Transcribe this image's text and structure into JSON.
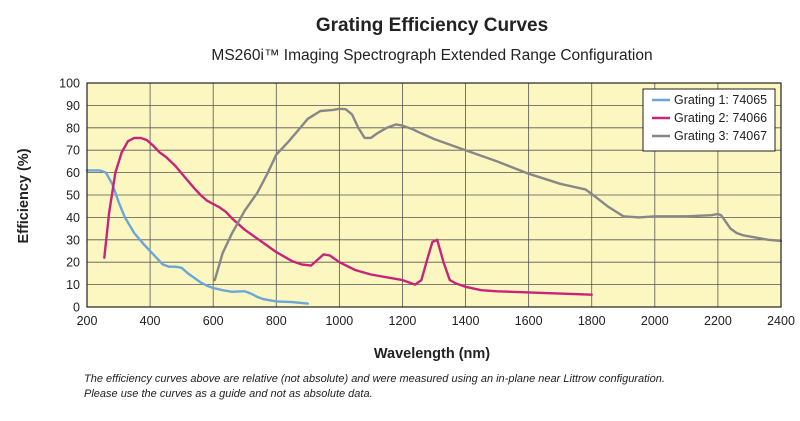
{
  "chart_data": {
    "type": "line",
    "title": "Grating Efficiency Curves",
    "subtitle": "MS260i™ Imaging Spectrograph Extended Range Configuration",
    "xlabel": "Wavelength (nm)",
    "ylabel": "Efficiency (%)",
    "xlim": [
      200,
      2400
    ],
    "ylim": [
      0,
      100
    ],
    "x_ticks": [
      "200",
      "400",
      "600",
      "800",
      "1000",
      "1200",
      "1400",
      "1600",
      "1800",
      "2000",
      "2200",
      "2400"
    ],
    "y_ticks": [
      "0",
      "10",
      "20",
      "30",
      "40",
      "50",
      "60",
      "70",
      "80",
      "90",
      "100"
    ],
    "grid": true,
    "legend_position": "top-right",
    "plot_background": "#fcf7c0",
    "series": [
      {
        "name": "Grating 1: 74065",
        "color": "#6ba6d9",
        "x": [
          200,
          240,
          260,
          280,
          300,
          320,
          350,
          380,
          400,
          420,
          440,
          460,
          480,
          500,
          520,
          540,
          560,
          580,
          600,
          630,
          660,
          690,
          700,
          720,
          740,
          760,
          780,
          800,
          850,
          900
        ],
        "y": [
          61,
          61,
          60,
          55,
          47,
          40,
          33,
          28,
          25,
          22,
          19,
          18,
          18,
          17.5,
          15,
          13,
          11,
          9.5,
          8.5,
          7.5,
          6.8,
          7,
          7,
          6,
          4.5,
          3.5,
          3,
          2.5,
          2.2,
          1.5
        ]
      },
      {
        "name": "Grating 2: 74066",
        "color": "#c6257a",
        "x": [
          255,
          270,
          290,
          310,
          330,
          350,
          370,
          390,
          410,
          430,
          450,
          480,
          510,
          540,
          560,
          580,
          600,
          620,
          640,
          660,
          700,
          750,
          800,
          850,
          880,
          910,
          930,
          950,
          970,
          1000,
          1050,
          1100,
          1200,
          1240,
          1260,
          1280,
          1295,
          1310,
          1330,
          1350,
          1370,
          1400,
          1450,
          1500,
          1600,
          1700,
          1800
        ],
        "y": [
          22,
          42,
          60,
          69,
          74,
          75.5,
          75.5,
          74.5,
          72,
          69,
          67,
          63,
          58,
          53,
          50,
          47.5,
          46,
          44.5,
          42.5,
          39.5,
          34.5,
          29.5,
          24.5,
          20.5,
          19,
          18.5,
          21,
          23.5,
          23,
          20,
          16.5,
          14.5,
          12,
          10,
          12,
          22,
          29,
          30,
          20,
          12,
          10.5,
          9,
          7.5,
          7,
          6.5,
          6,
          5.5
        ]
      },
      {
        "name": "Grating 3: 74067",
        "color": "#878787",
        "x": [
          605,
          630,
          660,
          700,
          740,
          770,
          800,
          840,
          870,
          900,
          940,
          980,
          1000,
          1020,
          1040,
          1060,
          1080,
          1100,
          1120,
          1150,
          1180,
          1200,
          1230,
          1260,
          1300,
          1400,
          1500,
          1600,
          1700,
          1780,
          1800,
          1850,
          1900,
          1950,
          2000,
          2100,
          2180,
          2200,
          2210,
          2220,
          2240,
          2260,
          2280,
          2320,
          2360,
          2400
        ],
        "y": [
          12,
          24,
          33,
          43,
          51,
          59,
          68,
          74,
          79,
          84,
          87.5,
          88,
          88.5,
          88.3,
          86,
          80,
          75.5,
          75.5,
          77.5,
          80,
          81.5,
          81,
          79.5,
          77.5,
          75,
          70,
          65,
          59.5,
          55,
          52.5,
          50.5,
          45,
          40.5,
          40,
          40.5,
          40.5,
          41,
          41.5,
          41,
          39,
          35,
          33,
          32,
          31,
          30,
          29.5
        ]
      }
    ]
  },
  "footnote": {
    "line1": "The efficiency curves above are relative (not absolute) and were measured using an in-plane near Littrow configuration.",
    "line2": "Please use the curves as a guide and not as absolute data."
  }
}
